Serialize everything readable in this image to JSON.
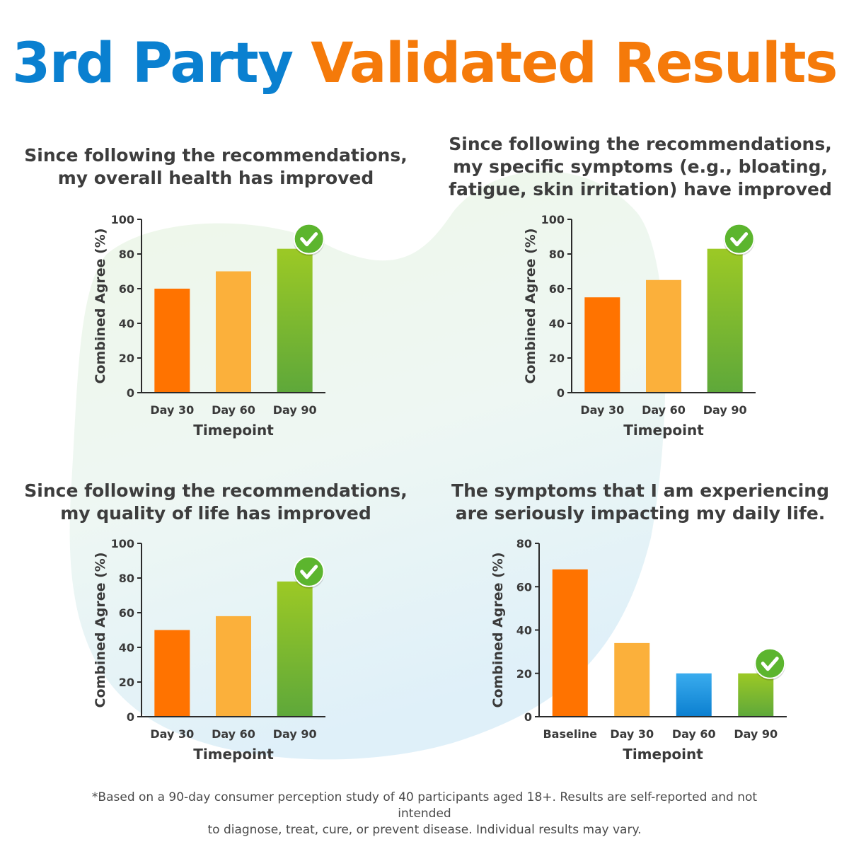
{
  "headline": {
    "part1": "3rd Party",
    "part2": "Validated Results"
  },
  "colors": {
    "blue": "#0a80d0",
    "orange": "#f57a0a",
    "bar_orange": "#ff7300",
    "bar_lightorange": "#fbb03b",
    "bar_green_top": "#9cc925",
    "bar_green_bottom": "#5ea83a",
    "bar_blue_top": "#3aacee",
    "bar_blue_bottom": "#0b7fd0",
    "check_green": "#5cb52e"
  },
  "chart_data": [
    {
      "type": "bar",
      "title_lines": [
        "Since following the recommendations,",
        "my overall health has improved"
      ],
      "categories": [
        "Day 30",
        "Day 60",
        "Day 90"
      ],
      "values": [
        60,
        70,
        83
      ],
      "bar_colors": [
        "orange",
        "lightorange",
        "green"
      ],
      "check_on": 2,
      "xlabel": "Timepoint",
      "ylabel": "Combined Agree (%)",
      "ylim": [
        0,
        100
      ],
      "yticks": [
        0,
        20,
        40,
        60,
        80,
        100
      ]
    },
    {
      "type": "bar",
      "title_lines": [
        "Since following the recommendations,",
        "my specific symptoms (e.g., bloating,",
        "fatigue, skin irritation) have improved"
      ],
      "categories": [
        "Day 30",
        "Day 60",
        "Day 90"
      ],
      "values": [
        55,
        65,
        83
      ],
      "bar_colors": [
        "orange",
        "lightorange",
        "green"
      ],
      "check_on": 2,
      "xlabel": "Timepoint",
      "ylabel": "Combined Agree (%)",
      "ylim": [
        0,
        100
      ],
      "yticks": [
        0,
        20,
        40,
        60,
        80,
        100
      ]
    },
    {
      "type": "bar",
      "title_lines": [
        "Since following the recommendations,",
        "my quality of life has improved"
      ],
      "categories": [
        "Day 30",
        "Day 60",
        "Day 90"
      ],
      "values": [
        50,
        58,
        78
      ],
      "bar_colors": [
        "orange",
        "lightorange",
        "green"
      ],
      "check_on": 2,
      "xlabel": "Timepoint",
      "ylabel": "Combined Agree (%)",
      "ylim": [
        0,
        100
      ],
      "yticks": [
        0,
        20,
        40,
        60,
        80,
        100
      ]
    },
    {
      "type": "bar",
      "title_lines": [
        "The symptoms that I am experiencing",
        "are seriously impacting my daily life."
      ],
      "categories": [
        "Baseline",
        "Day 30",
        "Day 60",
        "Day 90"
      ],
      "values": [
        68,
        34,
        20,
        20
      ],
      "bar_colors": [
        "orange",
        "lightorange",
        "blue",
        "green"
      ],
      "check_on": 3,
      "xlabel": "Timepoint",
      "ylabel": "Combined Agree (%)",
      "ylim": [
        0,
        80
      ],
      "yticks": [
        0,
        20,
        40,
        60,
        80
      ]
    }
  ],
  "footnote": {
    "line1": "*Based on a 90-day consumer perception study of 40 participants aged 18+. Results are self-reported and not intended",
    "line2": "to diagnose, treat, cure, or prevent disease. Individual results may vary."
  }
}
